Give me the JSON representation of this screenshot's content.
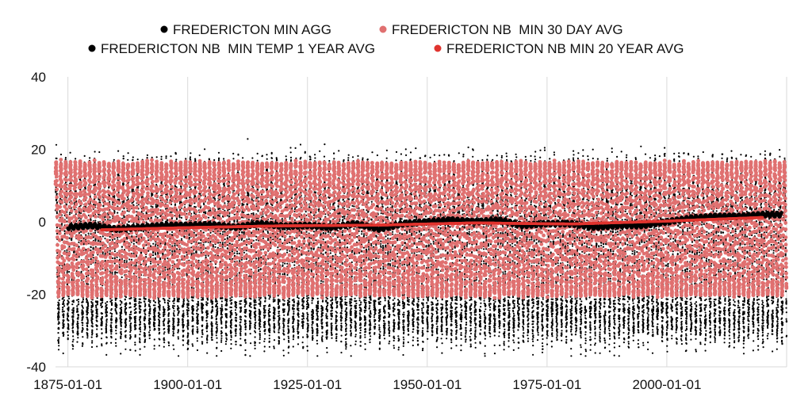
{
  "chart_data": {
    "type": "scatter",
    "title": "",
    "xlabel": "",
    "ylabel": "",
    "x_range": [
      "1872-06-01",
      "2025-01-01"
    ],
    "ylim": [
      -40,
      40
    ],
    "x_ticks": [
      "1875-01-01",
      "1900-01-01",
      "1925-01-01",
      "1950-01-01",
      "1975-01-01",
      "2000-01-01"
    ],
    "y_ticks": [
      40,
      20,
      0,
      -20,
      -40
    ],
    "grid": "vertical",
    "legend_position": "top",
    "series": [
      {
        "name": "FREDERICTON MIN AGG",
        "color": "#000000",
        "marker": "dot",
        "seasonal_range": {
          "summer_max_typical": 20,
          "winter_min_typical": -30,
          "record_high": 23,
          "record_low": -37
        }
      },
      {
        "name": "FREDERICTON NB  MIN 30 DAY AVG",
        "color": "#e07070",
        "marker": "dot",
        "seasonal_range": {
          "summer_peak": 16,
          "winter_trough": -20
        }
      },
      {
        "name": "FREDERICTON NB  MIN TEMP 1 YEAR AVG",
        "color": "#000000",
        "marker": "dot",
        "x": [
          "1875-01-01",
          "1880-01-01",
          "1885-01-01",
          "1890-01-01",
          "1895-01-01",
          "1900-01-01",
          "1905-01-01",
          "1910-01-01",
          "1915-01-01",
          "1920-01-01",
          "1925-01-01",
          "1930-01-01",
          "1935-01-01",
          "1940-01-01",
          "1945-01-01",
          "1950-01-01",
          "1955-01-01",
          "1960-01-01",
          "1965-01-01",
          "1970-01-01",
          "1975-01-01",
          "1980-01-01",
          "1985-01-01",
          "1990-01-01",
          "1995-01-01",
          "2000-01-01",
          "2005-01-01",
          "2010-01-01",
          "2015-01-01",
          "2020-01-01",
          "2024-01-01"
        ],
        "y": [
          -1.5,
          -1.0,
          -2.0,
          -1.5,
          -1.0,
          -1.0,
          -0.8,
          -1.5,
          -0.5,
          -1.2,
          -1.0,
          -1.5,
          -0.5,
          -2.0,
          -0.5,
          0.0,
          0.5,
          0.0,
          0.5,
          -1.0,
          -0.5,
          -0.5,
          -1.5,
          -1.0,
          -1.0,
          0.0,
          1.0,
          1.5,
          1.5,
          2.0,
          2.0
        ]
      },
      {
        "name": "FREDERICTON NB MIN 20 YEAR AVG",
        "color": "#e0342f",
        "marker": "dot",
        "x": [
          "1882-01-01",
          "1900-01-01",
          "1920-01-01",
          "1940-01-01",
          "1960-01-01",
          "1980-01-01",
          "2000-01-01",
          "2020-01-01"
        ],
        "y": [
          -2.2,
          -1.6,
          -1.1,
          -0.9,
          -0.3,
          -0.6,
          0.2,
          1.2
        ]
      }
    ]
  }
}
